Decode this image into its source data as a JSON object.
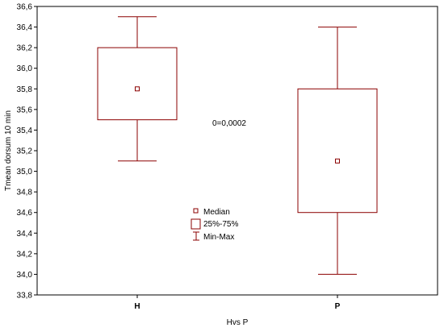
{
  "chart_data": {
    "type": "boxplot",
    "xlabel": "Hvs P",
    "ylabel": "Tmean dorsum 10 min",
    "ylim": [
      33.8,
      36.6
    ],
    "ytick_step": 0.2,
    "ytick_labels": [
      "33,8",
      "34,0",
      "34,2",
      "34,4",
      "34,6",
      "34,8",
      "35,0",
      "35,2",
      "35,4",
      "35,6",
      "35,8",
      "36,0",
      "36,2",
      "36,4",
      "36,6"
    ],
    "categories": [
      "H",
      "P"
    ],
    "boxes": [
      {
        "category": "H",
        "median": 35.8,
        "q1": 35.5,
        "q3": 36.2,
        "min": 35.1,
        "max": 36.5
      },
      {
        "category": "P",
        "median": 35.1,
        "q1": 34.6,
        "q3": 35.8,
        "min": 34.0,
        "max": 36.4
      }
    ],
    "annotation": "0=0,0002",
    "legend": {
      "placement": "center-left",
      "items": [
        {
          "symbol": "median",
          "label": "Median"
        },
        {
          "symbol": "box",
          "label": "25%-75%"
        },
        {
          "symbol": "whisker",
          "label": "Min-Max"
        }
      ]
    },
    "colors": {
      "box": "#8b0000",
      "axis": "#000000"
    },
    "grid": false
  }
}
